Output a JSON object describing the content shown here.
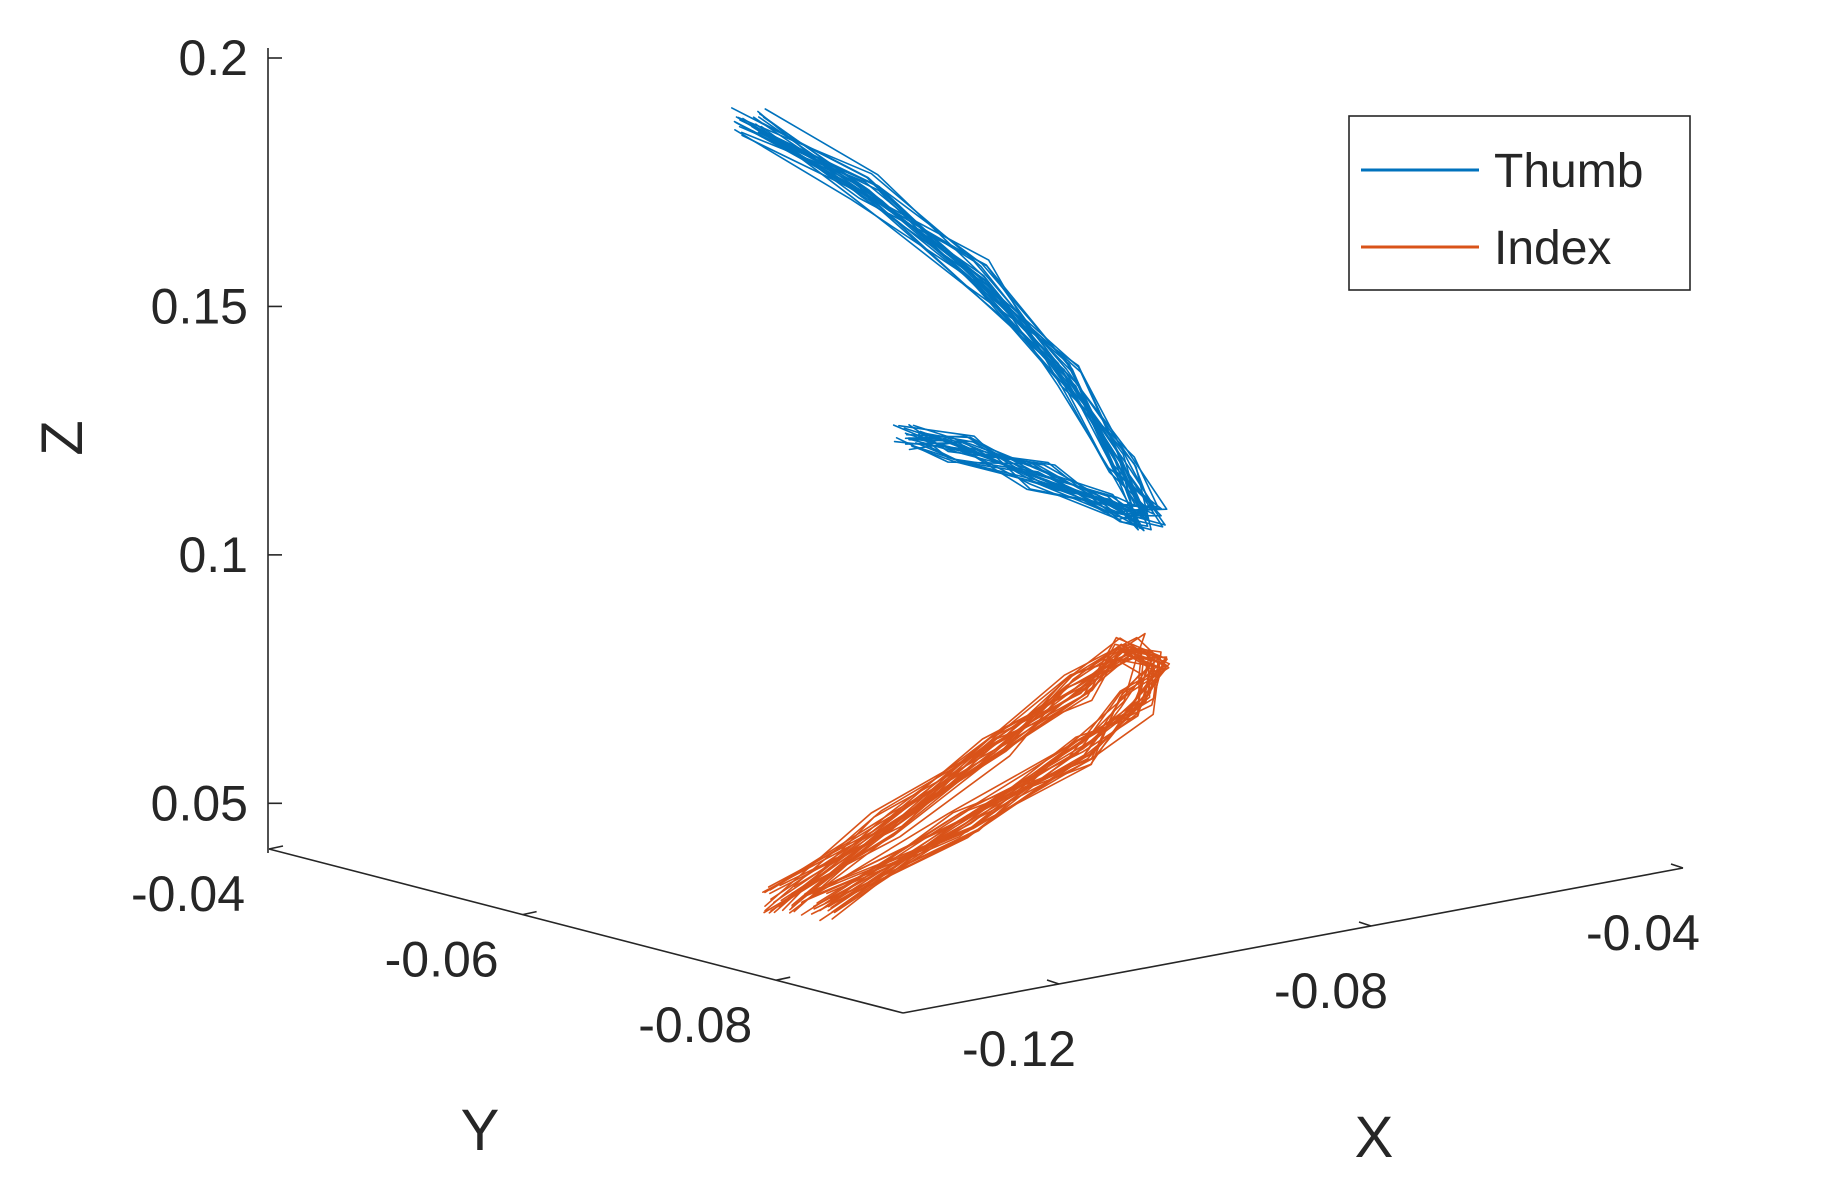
{
  "chart_data": {
    "type": "line",
    "projection": "3d",
    "grid": false,
    "legend_position": "top-right",
    "xlabel": "X",
    "ylabel": "Y",
    "zlabel": "Z",
    "xlim": [
      -0.14,
      -0.04
    ],
    "ylim": [
      -0.09,
      -0.04
    ],
    "zlim": [
      0.04,
      0.2
    ],
    "x_ticks": [
      -0.12,
      -0.08,
      -0.04
    ],
    "x_tick_labels": [
      "-0.12",
      "-0.08",
      "-0.04"
    ],
    "y_ticks": [
      -0.04,
      -0.06,
      -0.08
    ],
    "y_tick_labels": [
      "-0.04",
      "-0.06",
      "-0.08"
    ],
    "z_ticks": [
      0.05,
      0.1,
      0.15,
      0.2
    ],
    "z_tick_labels": [
      "0.05",
      "0.1",
      "0.15",
      "0.2"
    ],
    "series": [
      {
        "name": "Thumb",
        "color": "#0072BD",
        "points": [
          [
            -0.098,
            -0.052,
            0.182
          ],
          [
            -0.088,
            -0.055,
            0.168
          ],
          [
            -0.079,
            -0.058,
            0.15
          ],
          [
            -0.072,
            -0.061,
            0.13
          ],
          [
            -0.068,
            -0.063,
            0.112
          ],
          [
            -0.066,
            -0.064,
            0.101
          ],
          [
            -0.069,
            -0.063,
            0.103
          ],
          [
            -0.075,
            -0.061,
            0.11
          ],
          [
            -0.082,
            -0.059,
            0.116
          ],
          [
            -0.087,
            -0.058,
            0.119
          ]
        ]
      },
      {
        "name": "Index",
        "color": "#D95319",
        "points": [
          [
            -0.125,
            -0.071,
            0.046
          ],
          [
            -0.108,
            -0.069,
            0.055
          ],
          [
            -0.092,
            -0.068,
            0.065
          ],
          [
            -0.08,
            -0.067,
            0.073
          ],
          [
            -0.072,
            -0.066,
            0.078
          ],
          [
            -0.069,
            -0.066,
            0.074
          ],
          [
            -0.071,
            -0.066,
            0.066
          ],
          [
            -0.08,
            -0.067,
            0.06
          ],
          [
            -0.098,
            -0.069,
            0.052
          ],
          [
            -0.12,
            -0.071,
            0.043
          ]
        ]
      }
    ]
  }
}
